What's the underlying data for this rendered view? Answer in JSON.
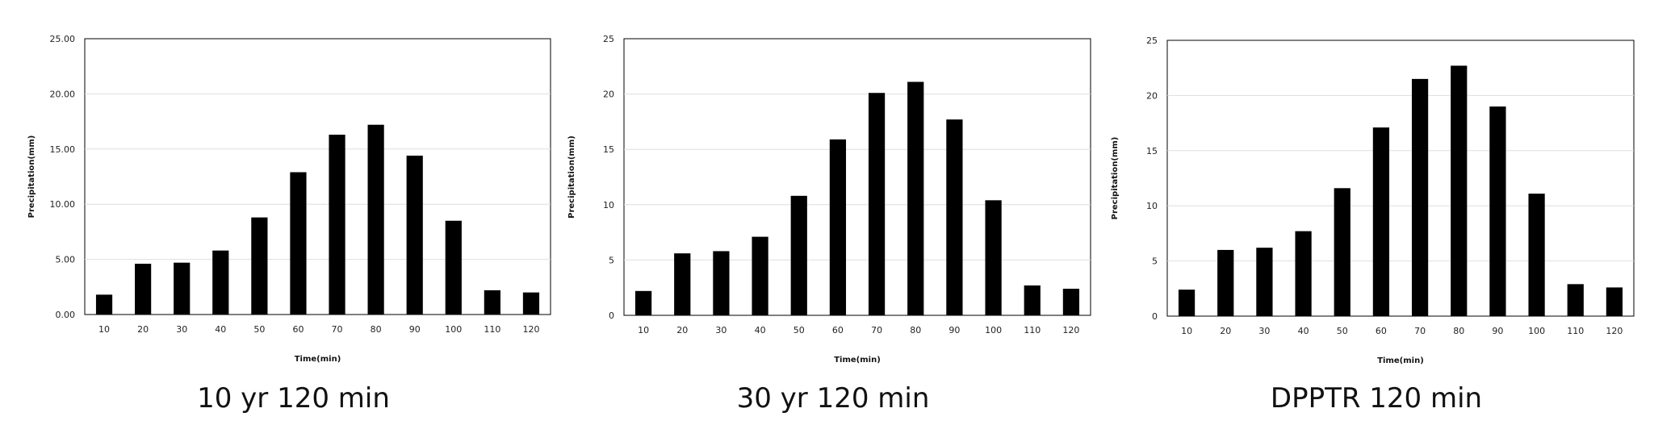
{
  "chart_data": [
    {
      "type": "bar",
      "title": "10 yr 120 min",
      "xlabel": "Time(min)",
      "ylabel": "Precipitation(mm)",
      "categories": [
        "10",
        "20",
        "30",
        "40",
        "50",
        "60",
        "70",
        "80",
        "90",
        "100",
        "110",
        "120"
      ],
      "values": [
        1.8,
        4.6,
        4.7,
        5.8,
        8.8,
        12.9,
        16.3,
        17.2,
        14.4,
        8.5,
        2.2,
        2.0
      ],
      "ylim": [
        0,
        25
      ],
      "yticks": [
        "0.00",
        "5.00",
        "10.00",
        "15.00",
        "20.00",
        "25.00"
      ],
      "grid": true,
      "bar_color": "#000000"
    },
    {
      "type": "bar",
      "title": "30 yr 120 min",
      "xlabel": "Time(min)",
      "ylabel": "Precipitation(mm)",
      "categories": [
        "10",
        "20",
        "30",
        "40",
        "50",
        "60",
        "70",
        "80",
        "90",
        "100",
        "110",
        "120"
      ],
      "values": [
        2.2,
        5.6,
        5.8,
        7.1,
        10.8,
        15.9,
        20.1,
        21.1,
        17.7,
        10.4,
        2.7,
        2.4
      ],
      "ylim": [
        0,
        25
      ],
      "yticks": [
        "0",
        "5",
        "10",
        "15",
        "20",
        "25"
      ],
      "grid": true,
      "bar_color": "#000000"
    },
    {
      "type": "bar",
      "title": "DPPTR 120 min",
      "xlabel": "Time(min)",
      "ylabel": "Precipitation(mm)",
      "categories": [
        "10",
        "20",
        "30",
        "40",
        "50",
        "60",
        "70",
        "80",
        "90",
        "100",
        "110",
        "120"
      ],
      "values": [
        2.4,
        6.0,
        6.2,
        7.7,
        11.6,
        17.1,
        21.5,
        22.7,
        19.0,
        11.1,
        2.9,
        2.6
      ],
      "ylim": [
        0,
        25
      ],
      "yticks": [
        "0",
        "5",
        "10",
        "15",
        "20",
        "25"
      ],
      "grid": true,
      "bar_color": "#000000"
    }
  ]
}
